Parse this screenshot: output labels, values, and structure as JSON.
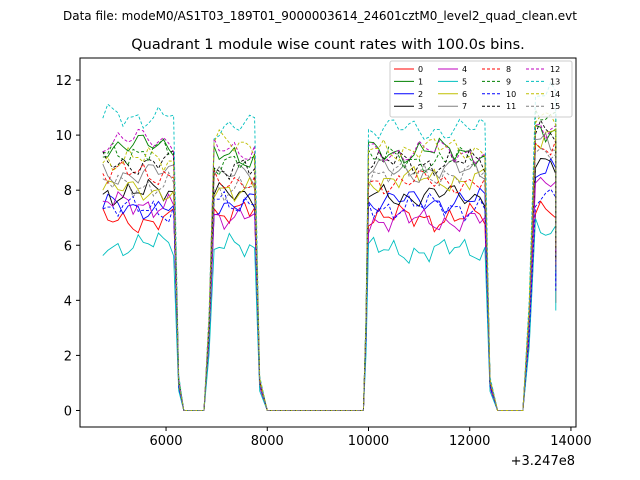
{
  "chart_data": {
    "type": "line",
    "suptitle": "Data file: modeM0/AS1T03_189T01_9000003614_24601cztM0_level2_quad_clean.evt",
    "title": "Quadrant 1 module wise count rates with 100.0s bins.",
    "xlabel": "",
    "ylabel": "",
    "x_offset_label": "+3.247e8",
    "xlim": [
      4300,
      14100
    ],
    "ylim": [
      -0.6,
      12.8
    ],
    "xticks": [
      6000,
      8000,
      10000,
      12000,
      14000
    ],
    "xtick_labels": [
      "6000",
      "8000",
      "10000",
      "12000",
      "14000"
    ],
    "yticks": [
      0,
      2,
      4,
      6,
      8,
      10,
      12
    ],
    "ytick_labels": [
      "0",
      "2",
      "4",
      "6",
      "8",
      "10",
      "12"
    ],
    "segments": [
      {
        "x_start": 4750,
        "x_end": 6150,
        "drop_to": 6350
      },
      {
        "x_start": 6950,
        "x_end": 7750,
        "rise_from": 6750,
        "drop_to": 8000
      },
      {
        "x_start": 10000,
        "x_end": 12300,
        "rise_from": 9900,
        "drop_to": 12550
      },
      {
        "x_start": 13300,
        "x_end": 13700,
        "rise_from": 13050
      }
    ],
    "zero_gaps": [
      [
        6350,
        6750
      ],
      [
        8000,
        9900
      ],
      [
        12550,
        13050
      ]
    ],
    "series": [
      {
        "name": "0",
        "color": "#ff0000",
        "dash": false,
        "levels": [
          6.9,
          7.2,
          7.0,
          7.1
        ]
      },
      {
        "name": "1",
        "color": "#008000",
        "dash": false,
        "levels": [
          9.6,
          9.2,
          9.4,
          10.3
        ]
      },
      {
        "name": "2",
        "color": "#0000ff",
        "dash": false,
        "levels": [
          7.4,
          7.5,
          7.6,
          8.6
        ]
      },
      {
        "name": "3",
        "color": "#000000",
        "dash": false,
        "levels": [
          7.9,
          7.8,
          7.8,
          9.1
        ]
      },
      {
        "name": "4",
        "color": "#bf00bf",
        "dash": false,
        "levels": [
          7.5,
          7.1,
          6.9,
          8.2
        ]
      },
      {
        "name": "5",
        "color": "#00bfbf",
        "dash": false,
        "levels": [
          6.0,
          5.9,
          5.8,
          6.6
        ]
      },
      {
        "name": "6",
        "color": "#bfbf00",
        "dash": false,
        "levels": [
          8.0,
          8.1,
          8.4,
          9.9
        ]
      },
      {
        "name": "7",
        "color": "#808080",
        "dash": false,
        "levels": [
          8.6,
          8.5,
          8.7,
          9.7
        ]
      },
      {
        "name": "8",
        "color": "#ff0000",
        "dash": true,
        "levels": [
          8.6,
          8.4,
          8.3,
          9.6
        ]
      },
      {
        "name": "9",
        "color": "#008000",
        "dash": true,
        "levels": [
          9.4,
          8.9,
          9.1,
          10.6
        ]
      },
      {
        "name": "10",
        "color": "#0000ff",
        "dash": true,
        "levels": [
          7.3,
          7.6,
          7.4,
          7.9
        ]
      },
      {
        "name": "11",
        "color": "#000000",
        "dash": true,
        "levels": [
          9.0,
          8.7,
          9.0,
          10.0
        ]
      },
      {
        "name": "12",
        "color": "#bf00bf",
        "dash": true,
        "levels": [
          9.8,
          9.5,
          9.4,
          10.4
        ]
      },
      {
        "name": "13",
        "color": "#00bfbf",
        "dash": true,
        "levels": [
          10.7,
          10.3,
          10.2,
          11.4
        ]
      },
      {
        "name": "14",
        "color": "#bfbf00",
        "dash": true,
        "levels": [
          9.1,
          9.7,
          9.5,
          10.8
        ]
      },
      {
        "name": "15",
        "color": "#808080",
        "dash": true,
        "levels": [
          8.2,
          8.1,
          8.6,
          9.2
        ]
      }
    ],
    "legend_position": "top-right",
    "grid": false
  }
}
